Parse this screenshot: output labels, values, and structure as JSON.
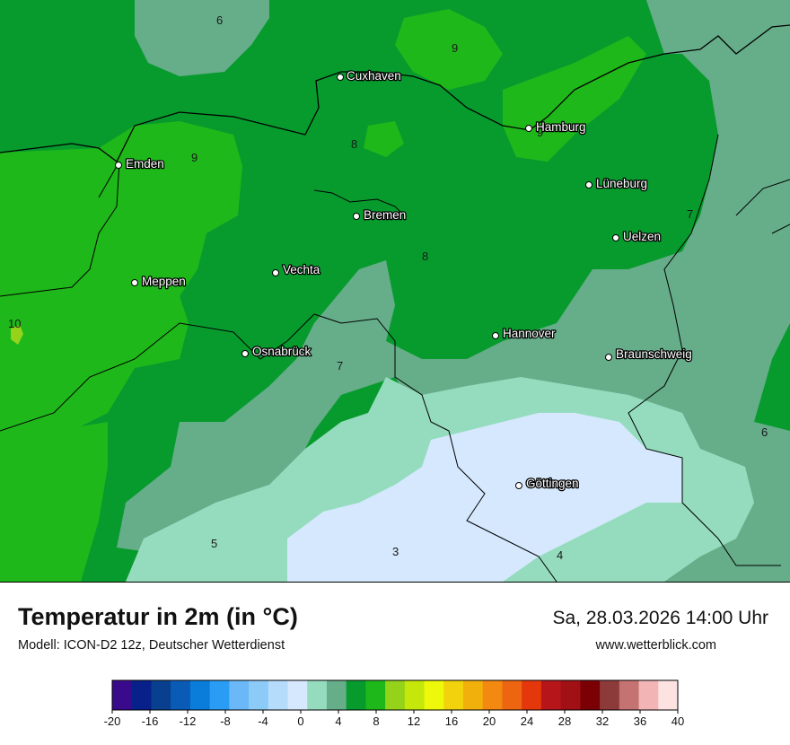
{
  "title": "Temperatur in 2m (in °C)",
  "subtitle": "Modell: ICON-D2 12z, Deutscher Wetterdienst",
  "datetime": "Sa, 28.03.2026 14:00 Uhr",
  "website": "www.wetterblick.com",
  "cities": [
    {
      "id": "cuxhaven",
      "name": "Cuxhaven"
    },
    {
      "id": "hamburg",
      "name": "Hamburg"
    },
    {
      "id": "emden",
      "name": "Emden"
    },
    {
      "id": "lueneburg",
      "name": "Lüneburg"
    },
    {
      "id": "bremen",
      "name": "Bremen"
    },
    {
      "id": "uelzen",
      "name": "Uelzen"
    },
    {
      "id": "vechta",
      "name": "Vechta"
    },
    {
      "id": "meppen",
      "name": "Meppen"
    },
    {
      "id": "hannover",
      "name": "Hannover"
    },
    {
      "id": "osnabrueck",
      "name": "Osnabrück"
    },
    {
      "id": "braunschweig",
      "name": "Braunschweig"
    },
    {
      "id": "goettingen",
      "name": "Göttingen"
    }
  ],
  "contour_labels": [
    "6",
    "9",
    "8",
    "9",
    "9",
    "7",
    "8",
    "10",
    "7",
    "6",
    "5",
    "3",
    "4"
  ],
  "legend": {
    "ticks": [
      "-20",
      "-16",
      "-12",
      "-8",
      "-4",
      "0",
      "4",
      "8",
      "12",
      "16",
      "20",
      "24",
      "28",
      "32",
      "36",
      "40"
    ],
    "colors": [
      "#3a0a8c",
      "#07208a",
      "#083f8e",
      "#0a5bb5",
      "#0a7cd9",
      "#2a9cf4",
      "#6ab8f7",
      "#8ccaf8",
      "#b5dcfb",
      "#d5e8fd",
      "#95dcbf",
      "#66ad8a",
      "#079b2e",
      "#1fb81a",
      "#94d31a",
      "#c6e70a",
      "#eef80a",
      "#f1d20c",
      "#f1b00c",
      "#f38910",
      "#ed6511",
      "#e4370c",
      "#b6151a",
      "#a11015",
      "#7b0005",
      "#8d3a3a",
      "#c47272",
      "#f2b4b4",
      "#fde2e2"
    ]
  },
  "colors": {
    "temp_3": "#d5e8fd",
    "temp_4": "#95dcbf",
    "temp_5_6": "#66ad8a",
    "temp_7_8": "#079b2e",
    "temp_9": "#1fb81a",
    "temp_10": "#94d31a"
  }
}
